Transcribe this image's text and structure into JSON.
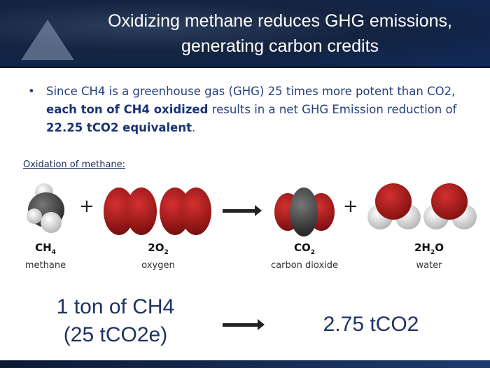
{
  "title": "Oxidizing methane reduces GHG emissions, generating carbon credits",
  "bullet": {
    "p1": "Since CH4 is a greenhouse gas (GHG) 25 times more potent than CO2, ",
    "b1": "each ton of CH4 oxidized",
    "p2": " results in a net GHG Emission reduction of ",
    "b2": "22.25 tCO2 equivalent",
    "p3": "."
  },
  "subheading": "Oxidation of methane:",
  "reaction": {
    "plus": "+",
    "methane": {
      "formula": "CH",
      "sub": "4",
      "name": "methane"
    },
    "oxygen": {
      "coef": "2O",
      "sub": "2",
      "name": "oxygen"
    },
    "co2": {
      "formula": "CO",
      "sub": "2",
      "name": "carbon dioxide"
    },
    "water": {
      "coef": "2H",
      "sub": "2",
      "tail": "O",
      "name": "water"
    }
  },
  "conversion": {
    "left_line1": "1 ton of CH4",
    "left_line2": "(25 tCO2e)",
    "right": "2.75 tCO2"
  },
  "colors": {
    "header": "#14233f",
    "text": "#243f7a",
    "oxygen": "#b01e1e",
    "carbon": "#333333"
  }
}
